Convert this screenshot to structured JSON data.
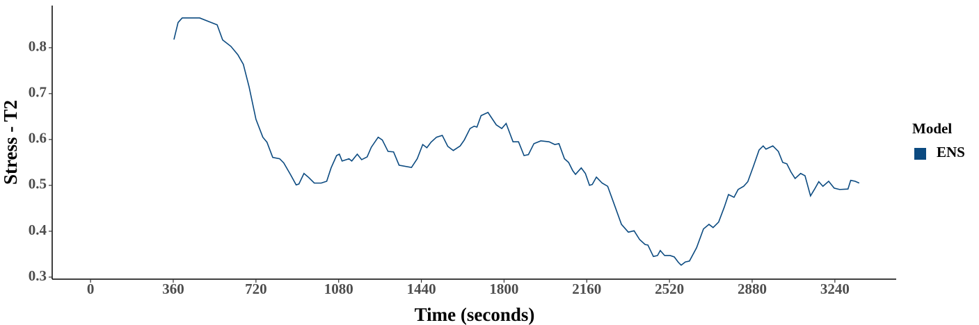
{
  "chart_data": {
    "type": "line",
    "x_label": "Time (seconds)",
    "y_label": "Stress - T2",
    "legend_title": "Model",
    "legend_position": "right",
    "xlim": [
      -167,
      3507
    ],
    "ylim": [
      0.2955,
      0.892
    ],
    "xticks": [
      0,
      360,
      720,
      1080,
      1440,
      1800,
      2160,
      2520,
      2880,
      3240
    ],
    "yticks": [
      0.3,
      0.4,
      0.5,
      0.6,
      0.7,
      0.8
    ],
    "grid": false,
    "x": [
      363,
      381,
      399,
      430,
      475,
      520,
      551,
      575,
      611,
      641,
      665,
      690,
      720,
      750,
      768,
      793,
      823,
      841,
      871,
      895,
      907,
      929,
      950,
      974,
      1004,
      1028,
      1047,
      1071,
      1083,
      1095,
      1125,
      1137,
      1161,
      1180,
      1204,
      1222,
      1252,
      1270,
      1295,
      1319,
      1343,
      1397,
      1422,
      1446,
      1464,
      1482,
      1506,
      1531,
      1555,
      1579,
      1609,
      1627,
      1652,
      1670,
      1682,
      1700,
      1730,
      1766,
      1790,
      1809,
      1839,
      1863,
      1887,
      1906,
      1930,
      1960,
      1996,
      2021,
      2039,
      2063,
      2081,
      2099,
      2111,
      2136,
      2154,
      2172,
      2184,
      2202,
      2227,
      2251,
      2275,
      2311,
      2341,
      2366,
      2390,
      2414,
      2426,
      2450,
      2468,
      2480,
      2499,
      2523,
      2541,
      2559,
      2571,
      2589,
      2607,
      2638,
      2668,
      2692,
      2710,
      2734,
      2759,
      2777,
      2801,
      2819,
      2843,
      2861,
      2885,
      2910,
      2928,
      2940,
      2970,
      2994,
      3013,
      3031,
      3049,
      3067,
      3091,
      3110,
      3134,
      3152,
      3170,
      3188,
      3213,
      3237,
      3261,
      3297,
      3309,
      3328,
      3346
    ],
    "series": [
      {
        "name": "ENS",
        "color": "#0b4a80",
        "values": [
          0.818,
          0.855,
          0.865,
          0.865,
          0.865,
          0.856,
          0.85,
          0.817,
          0.803,
          0.785,
          0.764,
          0.715,
          0.644,
          0.605,
          0.594,
          0.561,
          0.558,
          0.549,
          0.523,
          0.501,
          0.503,
          0.526,
          0.517,
          0.505,
          0.505,
          0.509,
          0.538,
          0.565,
          0.568,
          0.553,
          0.558,
          0.553,
          0.568,
          0.556,
          0.562,
          0.583,
          0.605,
          0.599,
          0.574,
          0.573,
          0.544,
          0.539,
          0.558,
          0.589,
          0.582,
          0.594,
          0.605,
          0.609,
          0.585,
          0.576,
          0.586,
          0.599,
          0.624,
          0.629,
          0.627,
          0.652,
          0.659,
          0.632,
          0.624,
          0.635,
          0.595,
          0.595,
          0.565,
          0.567,
          0.591,
          0.597,
          0.595,
          0.589,
          0.591,
          0.558,
          0.55,
          0.532,
          0.524,
          0.538,
          0.526,
          0.5,
          0.502,
          0.518,
          0.505,
          0.498,
          0.465,
          0.415,
          0.398,
          0.401,
          0.382,
          0.371,
          0.37,
          0.345,
          0.347,
          0.358,
          0.347,
          0.347,
          0.344,
          0.332,
          0.326,
          0.333,
          0.335,
          0.364,
          0.405,
          0.415,
          0.408,
          0.42,
          0.453,
          0.48,
          0.474,
          0.491,
          0.498,
          0.508,
          0.541,
          0.577,
          0.586,
          0.579,
          0.586,
          0.574,
          0.55,
          0.547,
          0.529,
          0.515,
          0.526,
          0.521,
          0.477,
          0.492,
          0.508,
          0.498,
          0.509,
          0.494,
          0.491,
          0.492,
          0.511,
          0.509,
          0.505
        ]
      }
    ]
  }
}
